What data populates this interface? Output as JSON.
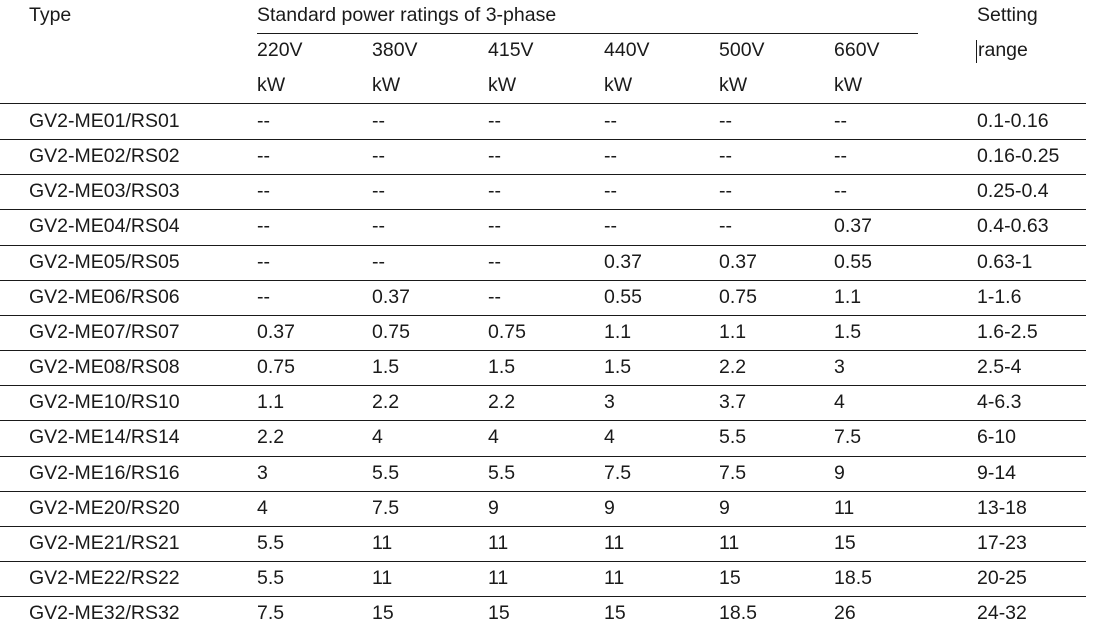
{
  "header": {
    "type_label": "Type",
    "group_label": "Standard power ratings of 3-phase",
    "setting_label": "Setting",
    "range_label": "range",
    "voltages": [
      "220V",
      "380V",
      "415V",
      "440V",
      "500V",
      "660V"
    ],
    "units": [
      "kW",
      "kW",
      "kW",
      "kW",
      "kW",
      "kW"
    ]
  },
  "rows": [
    {
      "type": "GV2-ME01/RS01",
      "values": [
        "--",
        "--",
        "--",
        "--",
        "--",
        "--"
      ],
      "range": "0.1-0.16"
    },
    {
      "type": "GV2-ME02/RS02",
      "values": [
        "--",
        "--",
        "--",
        "--",
        "--",
        "--"
      ],
      "range": "0.16-0.25"
    },
    {
      "type": "GV2-ME03/RS03",
      "values": [
        "--",
        "--",
        "--",
        "--",
        "--",
        "--"
      ],
      "range": "0.25-0.4"
    },
    {
      "type": "GV2-ME04/RS04",
      "values": [
        "--",
        "--",
        "--",
        "--",
        "--",
        "0.37"
      ],
      "range": "0.4-0.63"
    },
    {
      "type": "GV2-ME05/RS05",
      "values": [
        "--",
        "--",
        "--",
        "0.37",
        "0.37",
        "0.55"
      ],
      "range": "0.63-1"
    },
    {
      "type": "GV2-ME06/RS06",
      "values": [
        "--",
        "0.37",
        "--",
        "0.55",
        "0.75",
        "1.1"
      ],
      "range": "1-1.6"
    },
    {
      "type": "GV2-ME07/RS07",
      "values": [
        "0.37",
        "0.75",
        "0.75",
        "1.1",
        "1.1",
        "1.5"
      ],
      "range": "1.6-2.5"
    },
    {
      "type": "GV2-ME08/RS08",
      "values": [
        "0.75",
        "1.5",
        "1.5",
        "1.5",
        "2.2",
        "3"
      ],
      "range": "2.5-4"
    },
    {
      "type": "GV2-ME10/RS10",
      "values": [
        "1.1",
        "2.2",
        "2.2",
        "3",
        "3.7",
        "4"
      ],
      "range": "4-6.3"
    },
    {
      "type": "GV2-ME14/RS14",
      "values": [
        "2.2",
        "4",
        "4",
        "4",
        "5.5",
        "7.5"
      ],
      "range": "6-10"
    },
    {
      "type": "GV2-ME16/RS16",
      "values": [
        "3",
        "5.5",
        "5.5",
        "7.5",
        "7.5",
        "9"
      ],
      "range": "9-14"
    },
    {
      "type": "GV2-ME20/RS20",
      "values": [
        "4",
        "7.5",
        "9",
        "9",
        "9",
        "11"
      ],
      "range": "13-18"
    },
    {
      "type": "GV2-ME21/RS21",
      "values": [
        "5.5",
        "11",
        "11",
        "11",
        "11",
        "15"
      ],
      "range": "17-23"
    },
    {
      "type": "GV2-ME22/RS22",
      "values": [
        "5.5",
        "11",
        "11",
        "11",
        "15",
        "18.5"
      ],
      "range": "20-25"
    },
    {
      "type": "GV2-ME32/RS32",
      "values": [
        "7.5",
        "15",
        "15",
        "15",
        "18.5",
        "26"
      ],
      "range": "24-32"
    }
  ]
}
